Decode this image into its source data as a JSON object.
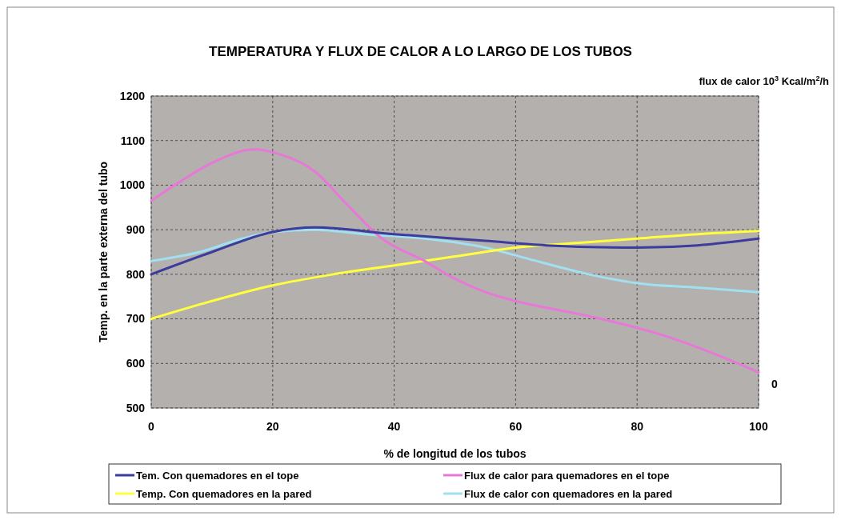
{
  "chart_data": {
    "type": "line",
    "title": "TEMPERATURA Y FLUX DE CALOR A LO LARGO DE LOS TUBOS",
    "xlabel": "% de longitud de los tubos",
    "ylabel": "Temp. en la parte externa del tubo",
    "y2label": "flux de calor 10$^{3}$ Kcal/m$^{2}$/h",
    "annotations": [
      "0"
    ],
    "xlim": [
      0,
      100
    ],
    "xticks": [
      0,
      20,
      40,
      60,
      80,
      100
    ],
    "ylim": [
      500,
      1200
    ],
    "yticks": [
      500,
      600,
      700,
      800,
      900,
      1000,
      1100,
      1200
    ],
    "grid": true,
    "legend": "bottom",
    "marker": "none",
    "line_style": "solid",
    "series": [
      {
        "name": "Tem. Con quemadores en el tope",
        "color": "#3c3c9c",
        "x": [
          0,
          10,
          20,
          27,
          40,
          55,
          65,
          80,
          90,
          100
        ],
        "values": [
          800,
          850,
          895,
          905,
          890,
          875,
          865,
          860,
          865,
          880
        ]
      },
      {
        "name": "Flux de calor para quemadores en el tope",
        "color": "#e878d8",
        "x": [
          0,
          5,
          10,
          17,
          21,
          27,
          32,
          38,
          45,
          50,
          55,
          60,
          70,
          75,
          85,
          93,
          100
        ],
        "values": [
          965,
          1010,
          1050,
          1080,
          1070,
          1030,
          960,
          880,
          830,
          790,
          760,
          740,
          712,
          697,
          660,
          620,
          580
        ]
      },
      {
        "name": "Temp. Con quemadores en la pared",
        "color": "#ffff40",
        "x": [
          0,
          10,
          20,
          30,
          40,
          50,
          60,
          70,
          80,
          90,
          100
        ],
        "values": [
          700,
          740,
          775,
          800,
          820,
          840,
          860,
          870,
          880,
          890,
          897
        ]
      },
      {
        "name": "Flux de calor con quemadores en la pared",
        "color": "#a0e0f0",
        "x": [
          0,
          8,
          15,
          20,
          27,
          35,
          45,
          55,
          62,
          72,
          80,
          90,
          100
        ],
        "values": [
          830,
          850,
          880,
          895,
          900,
          890,
          880,
          860,
          835,
          800,
          780,
          770,
          760
        ]
      }
    ]
  }
}
